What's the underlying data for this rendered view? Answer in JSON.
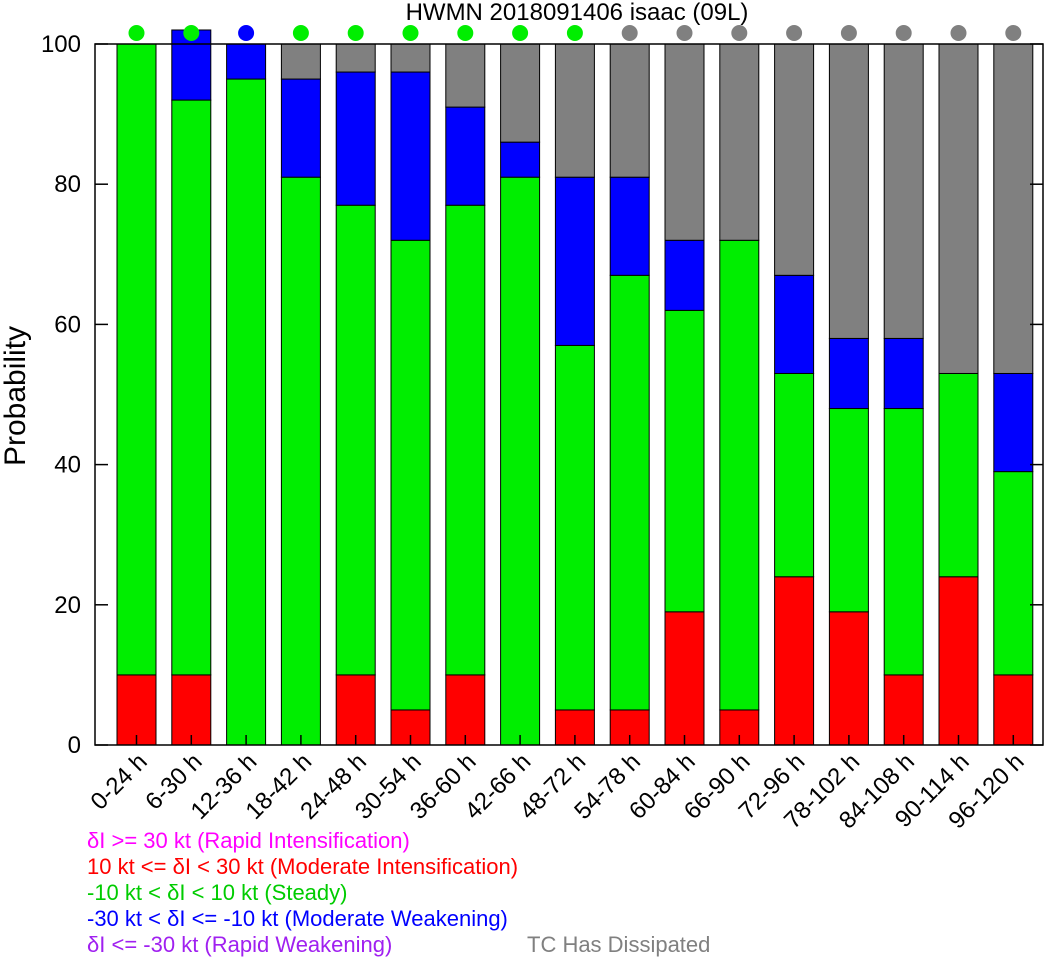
{
  "chart_data": {
    "type": "bar",
    "stacked": true,
    "title": "HWMN 2018091406 isaac (09L)",
    "xlabel": "",
    "ylabel": "Probability",
    "ylim": [
      0,
      100
    ],
    "yticks": [
      "0",
      "20",
      "40",
      "60",
      "80",
      "100"
    ],
    "categories": [
      "0-24 h",
      "6-30 h",
      "12-36 h",
      "18-42 h",
      "24-48 h",
      "30-54 h",
      "36-60 h",
      "42-66 h",
      "48-72 h",
      "54-78 h",
      "60-84 h",
      "66-90 h",
      "72-96 h",
      "78-102 h",
      "84-108 h",
      "90-114 h",
      "96-120 h"
    ],
    "series": [
      {
        "name": "δI >= 30 kt (Rapid Intensification)",
        "color": "#ff00ff",
        "values": [
          0,
          0,
          0,
          0,
          0,
          0,
          0,
          0,
          0,
          0,
          0,
          0,
          0,
          0,
          0,
          0,
          0
        ]
      },
      {
        "name": "10 kt <= δI < 30 kt (Moderate Intensification)",
        "color": "#ff0000",
        "values": [
          10,
          10,
          0,
          0,
          10,
          5,
          10,
          0,
          5,
          5,
          19,
          5,
          24,
          19,
          10,
          24,
          10
        ]
      },
      {
        "name": "-10 kt < δI < 10 kt (Steady)",
        "color": "#00ee00",
        "values": [
          90,
          82,
          95,
          81,
          67,
          67,
          67,
          81,
          52,
          62,
          43,
          67,
          29,
          29,
          38,
          29,
          29
        ]
      },
      {
        "name": "-30 kt < δI <= -10 kt (Moderate Weakening)",
        "color": "#0000ff",
        "values": [
          0,
          10,
          5,
          14,
          19,
          24,
          14,
          5,
          24,
          14,
          10,
          0,
          14,
          10,
          10,
          0,
          14
        ]
      },
      {
        "name": "δI <= -30 kt (Rapid Weakening)",
        "color": "#a020f0",
        "values": [
          0,
          0,
          0,
          0,
          0,
          0,
          0,
          0,
          0,
          0,
          0,
          0,
          0,
          0,
          0,
          0,
          0
        ]
      },
      {
        "name": "TC Has Dissipated",
        "color": "#808080",
        "values": [
          0,
          0,
          0,
          5,
          4,
          4,
          9,
          14,
          19,
          19,
          28,
          28,
          33,
          42,
          42,
          47,
          47
        ]
      }
    ],
    "top_dots": [
      "#00ee00",
      "#00ee00",
      "#0000ff",
      "#00ee00",
      "#00ee00",
      "#00ee00",
      "#00ee00",
      "#00ee00",
      "#00ee00",
      "#808080",
      "#808080",
      "#808080",
      "#808080",
      "#808080",
      "#808080",
      "#808080",
      "#808080"
    ],
    "grid": false
  },
  "legend": [
    {
      "label": "δI >= 30 kt (Rapid Intensification)",
      "color": "#ff00ff"
    },
    {
      "label": "10 kt <= δI < 30 kt (Moderate Intensification)",
      "color": "#ff0000"
    },
    {
      "label": "-10 kt < δI < 10 kt (Steady)",
      "color": "#00cc00"
    },
    {
      "label": "-30 kt < δI <= -10 kt (Moderate Weakening)",
      "color": "#0000ff"
    },
    {
      "label": "δI <= -30 kt (Rapid Weakening)",
      "color": "#a020f0"
    }
  ],
  "dissipated_label": {
    "label": "TC Has Dissipated",
    "color": "#808080"
  }
}
